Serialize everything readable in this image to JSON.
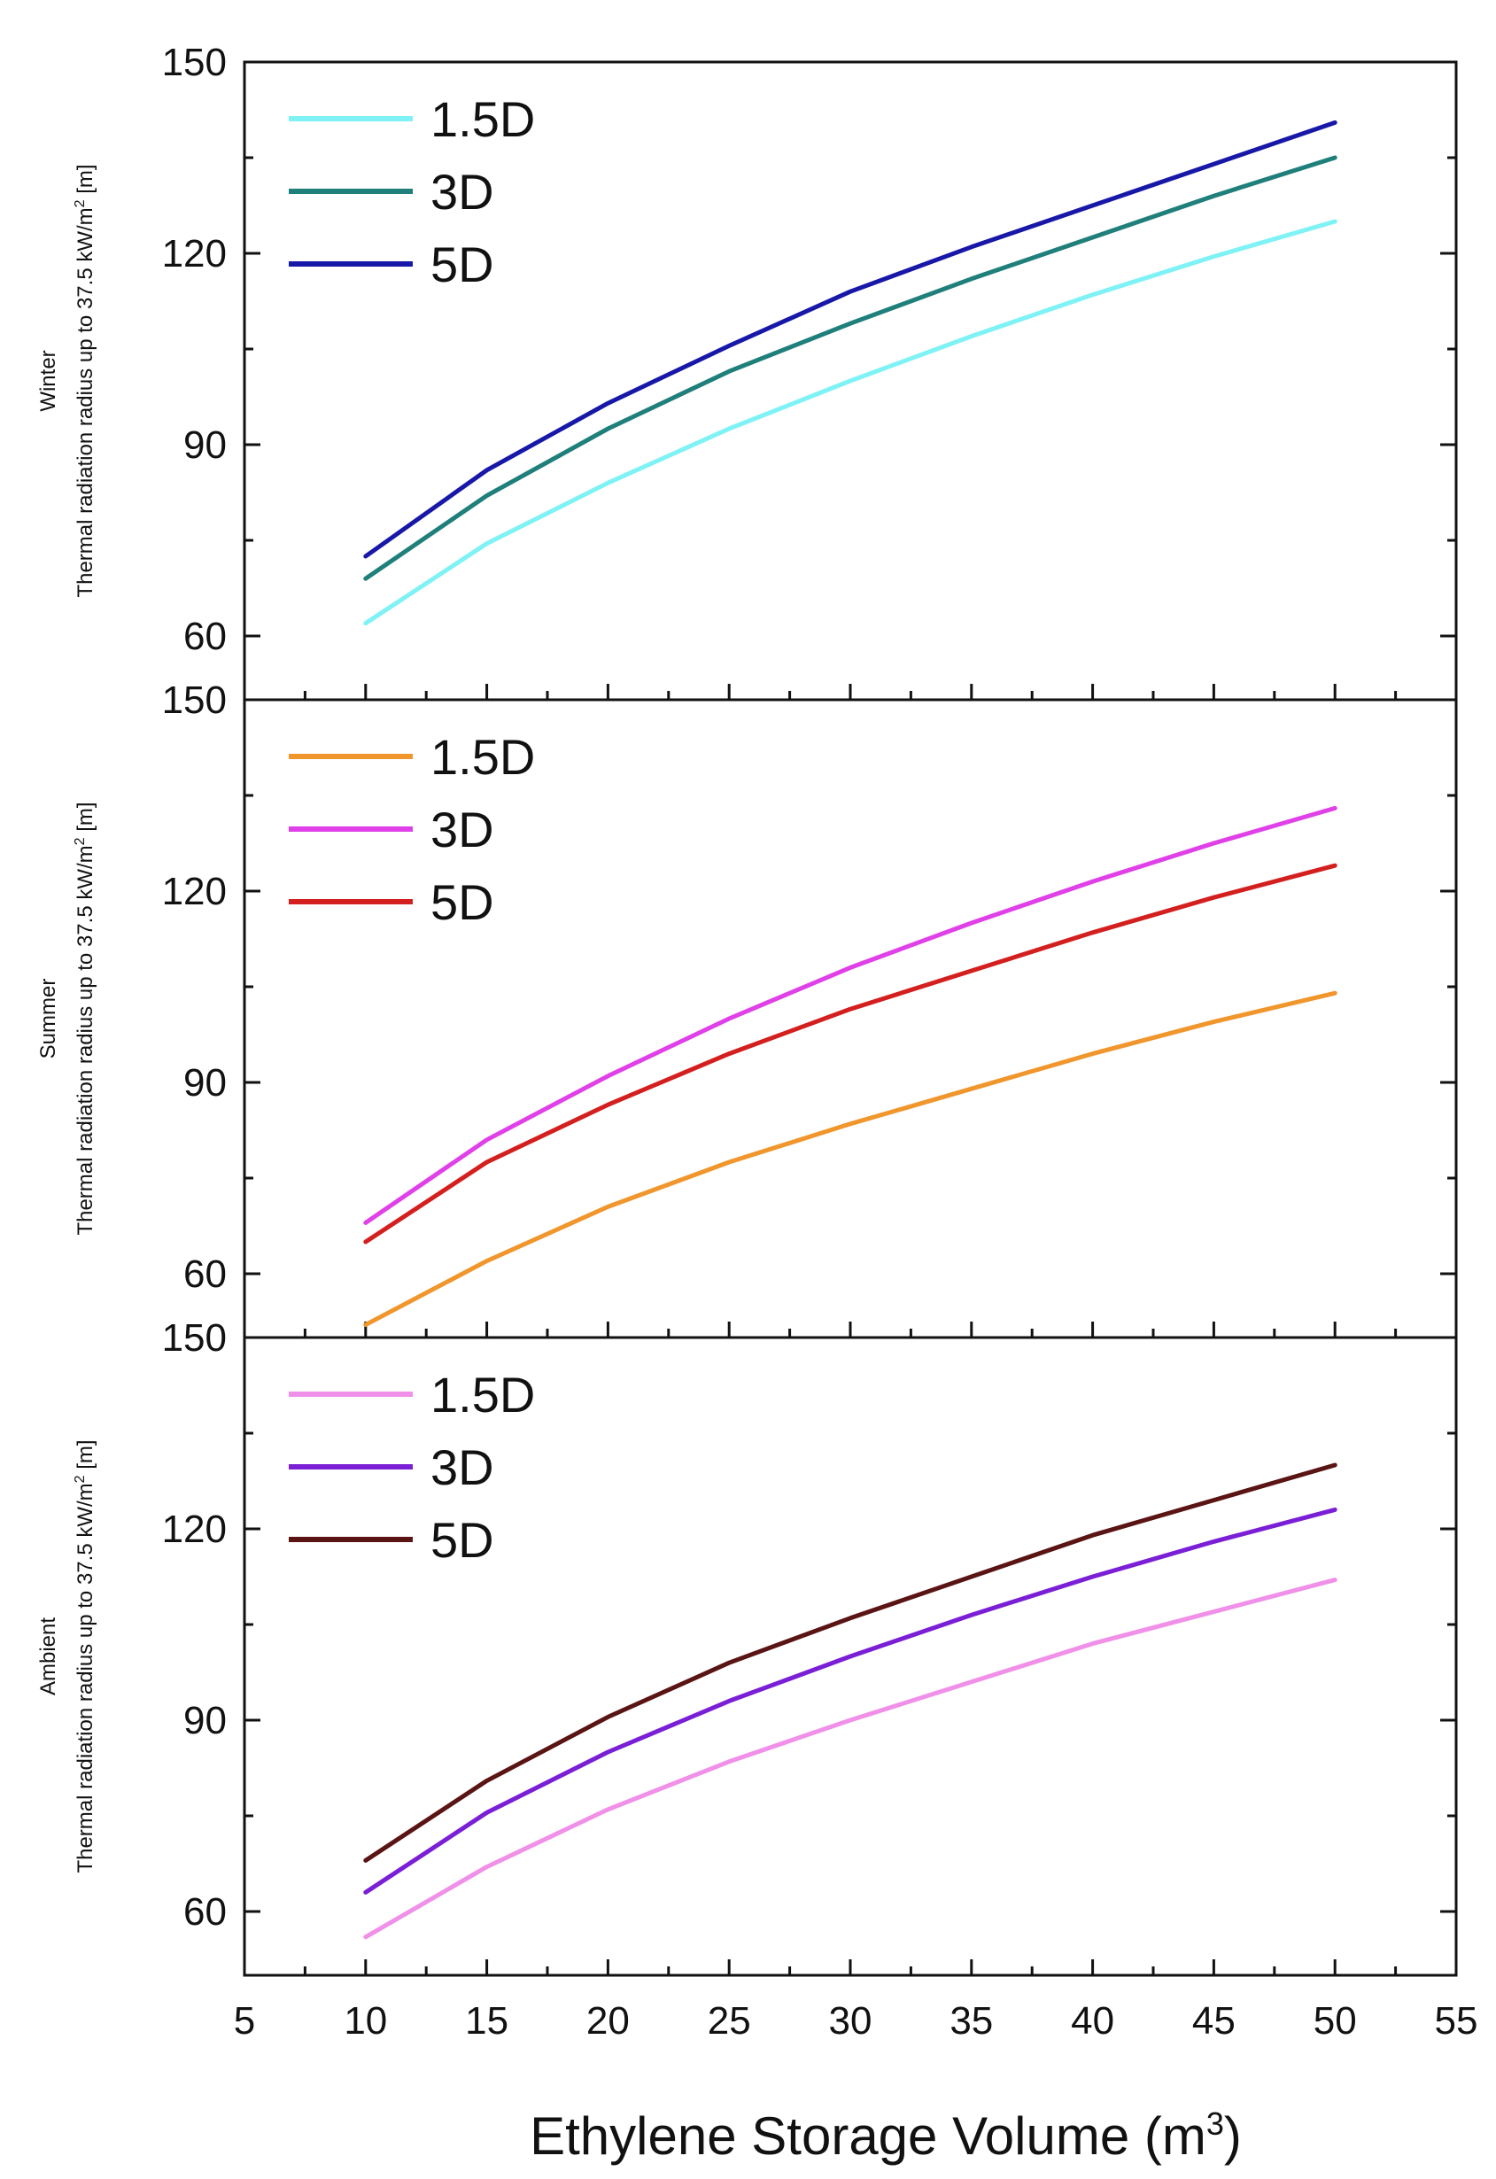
{
  "chart_data": {
    "type": "line",
    "x_axis": {
      "label": "Ethylene Storage Volume (m",
      "label_sup": "3",
      "label_close": ")",
      "range": [
        5,
        55
      ],
      "ticks": [
        5,
        10,
        15,
        20,
        25,
        30,
        35,
        40,
        45,
        50,
        55
      ],
      "tick_labels": [
        "5",
        "10",
        "15",
        "20",
        "25",
        "30",
        "35",
        "40",
        "45",
        "50",
        "55"
      ]
    },
    "x": [
      10,
      15,
      20,
      25,
      30,
      35,
      40,
      45,
      50
    ],
    "panels": [
      {
        "id": "winter",
        "ylabel_line1": "Winter",
        "ylabel_line2": "Thermal radiation radius up to 37.5 kW/m",
        "ylabel_sup": "2",
        "ylabel_end": " [m]",
        "ylim": [
          50,
          150
        ],
        "yticks": [
          60,
          90,
          120,
          150
        ],
        "ytick_labels": [
          "60",
          "90",
          "120",
          "150"
        ],
        "legend_position": "top-left",
        "series": [
          {
            "name": "1.5D",
            "color": "#7ff2f5",
            "values": [
              62,
              74.5,
              84,
              92.5,
              100,
              107,
              113.5,
              119.5,
              125
            ]
          },
          {
            "name": "3D",
            "color": "#1f7f7a",
            "values": [
              69,
              82,
              92.5,
              101.5,
              109,
              116,
              122.5,
              129,
              135
            ]
          },
          {
            "name": "5D",
            "color": "#1818a8",
            "values": [
              72.5,
              86,
              96.5,
              105.5,
              114,
              121,
              127.5,
              134,
              140.5
            ]
          }
        ]
      },
      {
        "id": "summer",
        "ylabel_line1": "Summer",
        "ylabel_line2": "Thermal radiation radius up to 37.5 kW/m",
        "ylabel_sup": "2",
        "ylabel_end": " [m]",
        "ylim": [
          50,
          150
        ],
        "yticks": [
          60,
          90,
          120,
          150
        ],
        "ytick_labels": [
          "60",
          "90",
          "120",
          "150"
        ],
        "legend_position": "top-left",
        "series": [
          {
            "name": "1.5D",
            "color": "#f0962c",
            "values": [
              52,
              62,
              70.5,
              77.5,
              83.5,
              89,
              94.5,
              99.5,
              104
            ]
          },
          {
            "name": "3D",
            "color": "#e040e8",
            "values": [
              68,
              81,
              91,
              100,
              108,
              115,
              121.5,
              127.5,
              133
            ]
          },
          {
            "name": "5D",
            "color": "#d41f1f",
            "values": [
              65,
              77.5,
              86.5,
              94.5,
              101.5,
              107.5,
              113.5,
              119,
              124
            ]
          }
        ]
      },
      {
        "id": "ambient",
        "ylabel_line1": "Ambient",
        "ylabel_line2": "Thermal radiation radius up to 37.5 kW/m",
        "ylabel_sup": "2",
        "ylabel_end": " [m]",
        "ylim": [
          50,
          150
        ],
        "yticks": [
          60,
          90,
          120,
          150
        ],
        "ytick_labels": [
          "60",
          "90",
          "120",
          "150"
        ],
        "legend_position": "top-left",
        "series": [
          {
            "name": "1.5D",
            "color": "#f090e8",
            "values": [
              56,
              67,
              76,
              83.5,
              90,
              96,
              102,
              107,
              112
            ]
          },
          {
            "name": "3D",
            "color": "#7a1fd6",
            "values": [
              63,
              75.5,
              85,
              93,
              100,
              106.5,
              112.5,
              118,
              123
            ]
          },
          {
            "name": "5D",
            "color": "#5a1414",
            "values": [
              68,
              80.5,
              90.5,
              99,
              106,
              112.5,
              119,
              124.5,
              130
            ]
          }
        ]
      }
    ]
  }
}
